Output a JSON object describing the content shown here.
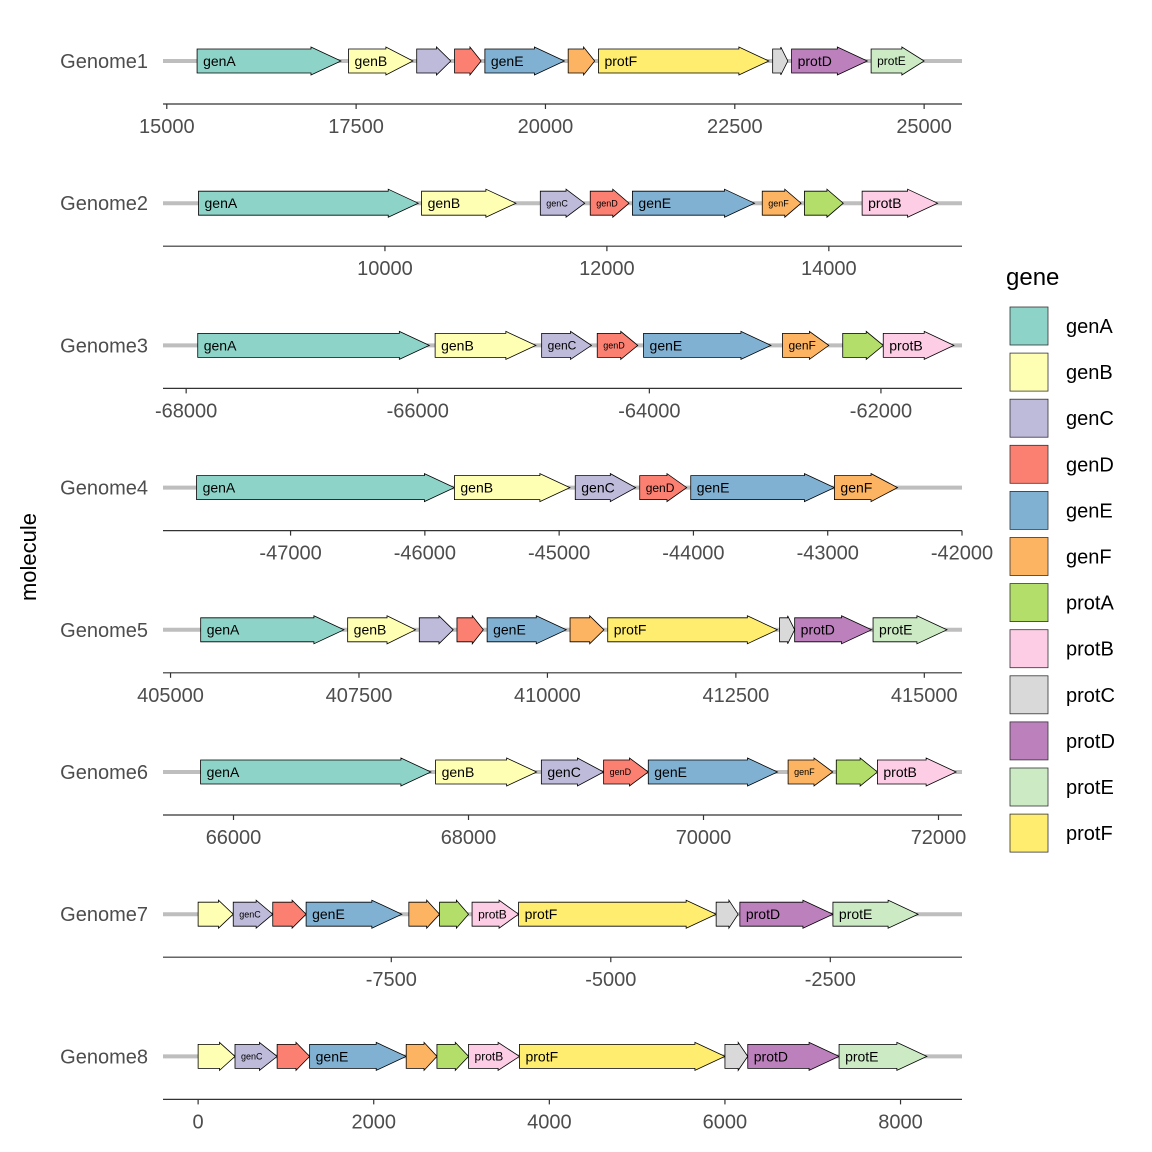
{
  "chart_data": {
    "type": "gene-arrow-map",
    "ylabel": "molecule",
    "legend_title": "gene",
    "legend_placement": "right",
    "gene_colors": {
      "genA": "#8DD3C7",
      "genB": "#FFFFB3",
      "genC": "#BEBADA",
      "genD": "#FB8072",
      "genE": "#80B1D3",
      "genF": "#FDB462",
      "protA": "#B3DE69",
      "protB": "#FCCDE5",
      "protC": "#D9D9D9",
      "protD": "#BC80BD",
      "protE": "#CCEBC5",
      "protF": "#FFED6F"
    },
    "legend": [
      "genA",
      "genB",
      "genC",
      "genD",
      "genE",
      "genF",
      "protA",
      "protB",
      "protC",
      "protD",
      "protE",
      "protF"
    ],
    "molecules": [
      {
        "name": "Genome1",
        "xlim": [
          14950,
          25500
        ],
        "ticks": [
          15000,
          17500,
          20000,
          22500,
          25000
        ],
        "tick_labels": [
          "15000",
          "17500",
          "20000",
          "22500",
          "25000"
        ],
        "genes": [
          {
            "gene": "genA",
            "start": 15400,
            "end": 17300,
            "label": "genA"
          },
          {
            "gene": "genB",
            "start": 17400,
            "end": 18250,
            "label": "genB"
          },
          {
            "gene": "genC",
            "start": 18300,
            "end": 18750,
            "label": ""
          },
          {
            "gene": "genD",
            "start": 18800,
            "end": 19150,
            "label": ""
          },
          {
            "gene": "genE",
            "start": 19200,
            "end": 20250,
            "label": "genE"
          },
          {
            "gene": "genF",
            "start": 20300,
            "end": 20650,
            "label": ""
          },
          {
            "gene": "protF",
            "start": 20700,
            "end": 22950,
            "label": "protF"
          },
          {
            "gene": "protC",
            "start": 23000,
            "end": 23200,
            "label": ""
          },
          {
            "gene": "protD",
            "start": 23250,
            "end": 24250,
            "label": "protD"
          },
          {
            "gene": "protE",
            "start": 24300,
            "end": 25000,
            "label": "protE"
          }
        ]
      },
      {
        "name": "Genome2",
        "xlim": [
          8000,
          15200
        ],
        "ticks": [
          10000,
          12000,
          14000
        ],
        "tick_labels": [
          "10000",
          "12000",
          "14000"
        ],
        "genes": [
          {
            "gene": "genA",
            "start": 8320,
            "end": 10300,
            "label": "genA"
          },
          {
            "gene": "genB",
            "start": 10330,
            "end": 11180,
            "label": "genB"
          },
          {
            "gene": "genC",
            "start": 11400,
            "end": 11800,
            "label": "genC"
          },
          {
            "gene": "genD",
            "start": 11850,
            "end": 12200,
            "label": "genD"
          },
          {
            "gene": "genE",
            "start": 12230,
            "end": 13330,
            "label": "genE"
          },
          {
            "gene": "genF",
            "start": 13400,
            "end": 13750,
            "label": "genF"
          },
          {
            "gene": "protA",
            "start": 13780,
            "end": 14130,
            "label": ""
          },
          {
            "gene": "protB",
            "start": 14300,
            "end": 14980,
            "label": "protB"
          }
        ]
      },
      {
        "name": "Genome3",
        "xlim": [
          -68200,
          -61300
        ],
        "ticks": [
          -68000,
          -66000,
          -64000,
          -62000
        ],
        "tick_labels": [
          "-68000",
          "-66000",
          "-64000",
          "-62000"
        ],
        "genes": [
          {
            "gene": "genA",
            "start": -67900,
            "end": -65900,
            "label": "genA"
          },
          {
            "gene": "genB",
            "start": -65850,
            "end": -64980,
            "label": "genB"
          },
          {
            "gene": "genC",
            "start": -64930,
            "end": -64500,
            "label": "genC"
          },
          {
            "gene": "genD",
            "start": -64450,
            "end": -64100,
            "label": "genD"
          },
          {
            "gene": "genE",
            "start": -64050,
            "end": -62950,
            "label": "genE"
          },
          {
            "gene": "genF",
            "start": -62850,
            "end": -62450,
            "label": "genF"
          },
          {
            "gene": "protA",
            "start": -62330,
            "end": -61980,
            "label": ""
          },
          {
            "gene": "protB",
            "start": -61980,
            "end": -61370,
            "label": "protB"
          }
        ]
      },
      {
        "name": "Genome4",
        "xlim": [
          -47950,
          -42000
        ],
        "ticks": [
          -47000,
          -46000,
          -45000,
          -44000,
          -43000,
          -42000
        ],
        "tick_labels": [
          "-47000",
          "-46000",
          "-45000",
          "-44000",
          "-43000",
          "-42000"
        ],
        "genes": [
          {
            "gene": "genA",
            "start": -47700,
            "end": -45780,
            "label": "genA"
          },
          {
            "gene": "genB",
            "start": -45780,
            "end": -44920,
            "label": "genB"
          },
          {
            "gene": "genC",
            "start": -44880,
            "end": -44430,
            "label": "genC"
          },
          {
            "gene": "genD",
            "start": -44400,
            "end": -44050,
            "label": "genD"
          },
          {
            "gene": "genE",
            "start": -44020,
            "end": -42950,
            "label": "genE"
          },
          {
            "gene": "genF",
            "start": -42950,
            "end": -42480,
            "label": "genF"
          }
        ]
      },
      {
        "name": "Genome5",
        "xlim": [
          404900,
          415500
        ],
        "ticks": [
          405000,
          407500,
          410000,
          412500,
          415000
        ],
        "tick_labels": [
          "405000",
          "407500",
          "410000",
          "412500",
          "415000"
        ],
        "genes": [
          {
            "gene": "genA",
            "start": 405400,
            "end": 407300,
            "label": "genA"
          },
          {
            "gene": "genB",
            "start": 407350,
            "end": 408250,
            "label": "genB"
          },
          {
            "gene": "genC",
            "start": 408300,
            "end": 408750,
            "label": ""
          },
          {
            "gene": "genD",
            "start": 408800,
            "end": 409150,
            "label": ""
          },
          {
            "gene": "genE",
            "start": 409200,
            "end": 410250,
            "label": "genE"
          },
          {
            "gene": "genF",
            "start": 410300,
            "end": 410750,
            "label": ""
          },
          {
            "gene": "protF",
            "start": 410800,
            "end": 413050,
            "label": "protF"
          },
          {
            "gene": "protC",
            "start": 413080,
            "end": 413280,
            "label": ""
          },
          {
            "gene": "protD",
            "start": 413280,
            "end": 414300,
            "label": "protD"
          },
          {
            "gene": "protE",
            "start": 414320,
            "end": 415300,
            "label": "protE"
          }
        ]
      },
      {
        "name": "Genome6",
        "xlim": [
          65400,
          72200
        ],
        "ticks": [
          66000,
          68000,
          70000,
          72000
        ],
        "tick_labels": [
          "66000",
          "68000",
          "70000",
          "72000"
        ],
        "genes": [
          {
            "gene": "genA",
            "start": 65720,
            "end": 67680,
            "label": "genA"
          },
          {
            "gene": "genB",
            "start": 67720,
            "end": 68580,
            "label": "genB"
          },
          {
            "gene": "genC",
            "start": 68620,
            "end": 69150,
            "label": "genC"
          },
          {
            "gene": "genD",
            "start": 69150,
            "end": 69530,
            "label": "genD"
          },
          {
            "gene": "genE",
            "start": 69530,
            "end": 70630,
            "label": "genE"
          },
          {
            "gene": "genF",
            "start": 70720,
            "end": 71100,
            "label": "genF"
          },
          {
            "gene": "protA",
            "start": 71130,
            "end": 71480,
            "label": ""
          },
          {
            "gene": "protB",
            "start": 71480,
            "end": 72150,
            "label": "protB"
          }
        ]
      },
      {
        "name": "Genome7",
        "xlim": [
          -10100,
          -1000
        ],
        "ticks": [
          -7500,
          -5000,
          -2500
        ],
        "tick_labels": [
          "-7500",
          "-5000",
          "-2500"
        ],
        "genes": [
          {
            "gene": "genB",
            "start": -9700,
            "end": -9300,
            "label": ""
          },
          {
            "gene": "genC",
            "start": -9300,
            "end": -8850,
            "label": "genC"
          },
          {
            "gene": "genD",
            "start": -8850,
            "end": -8470,
            "label": ""
          },
          {
            "gene": "genE",
            "start": -8470,
            "end": -7380,
            "label": "genE"
          },
          {
            "gene": "genF",
            "start": -7300,
            "end": -6950,
            "label": ""
          },
          {
            "gene": "protA",
            "start": -6950,
            "end": -6620,
            "label": ""
          },
          {
            "gene": "protB",
            "start": -6580,
            "end": -6050,
            "label": "protB"
          },
          {
            "gene": "protF",
            "start": -6050,
            "end": -3800,
            "label": "protF"
          },
          {
            "gene": "protC",
            "start": -3800,
            "end": -3550,
            "label": ""
          },
          {
            "gene": "protD",
            "start": -3530,
            "end": -2470,
            "label": "protD"
          },
          {
            "gene": "protE",
            "start": -2470,
            "end": -1500,
            "label": "protE"
          }
        ]
      },
      {
        "name": "Genome8",
        "xlim": [
          -400,
          8700
        ],
        "ticks": [
          0,
          2000,
          4000,
          6000,
          8000
        ],
        "tick_labels": [
          "0",
          "2000",
          "4000",
          "6000",
          "8000"
        ],
        "genes": [
          {
            "gene": "genB",
            "start": 0,
            "end": 420,
            "label": ""
          },
          {
            "gene": "genC",
            "start": 420,
            "end": 900,
            "label": "genC"
          },
          {
            "gene": "genD",
            "start": 900,
            "end": 1270,
            "label": ""
          },
          {
            "gene": "genE",
            "start": 1270,
            "end": 2370,
            "label": "genE"
          },
          {
            "gene": "genF",
            "start": 2370,
            "end": 2720,
            "label": ""
          },
          {
            "gene": "protA",
            "start": 2720,
            "end": 3080,
            "label": ""
          },
          {
            "gene": "protB",
            "start": 3080,
            "end": 3660,
            "label": "protB"
          },
          {
            "gene": "protF",
            "start": 3660,
            "end": 6000,
            "label": "protF"
          },
          {
            "gene": "protC",
            "start": 6000,
            "end": 6260,
            "label": ""
          },
          {
            "gene": "protD",
            "start": 6260,
            "end": 7300,
            "label": "protD"
          },
          {
            "gene": "protE",
            "start": 7300,
            "end": 8300,
            "label": "protE"
          }
        ]
      }
    ]
  }
}
